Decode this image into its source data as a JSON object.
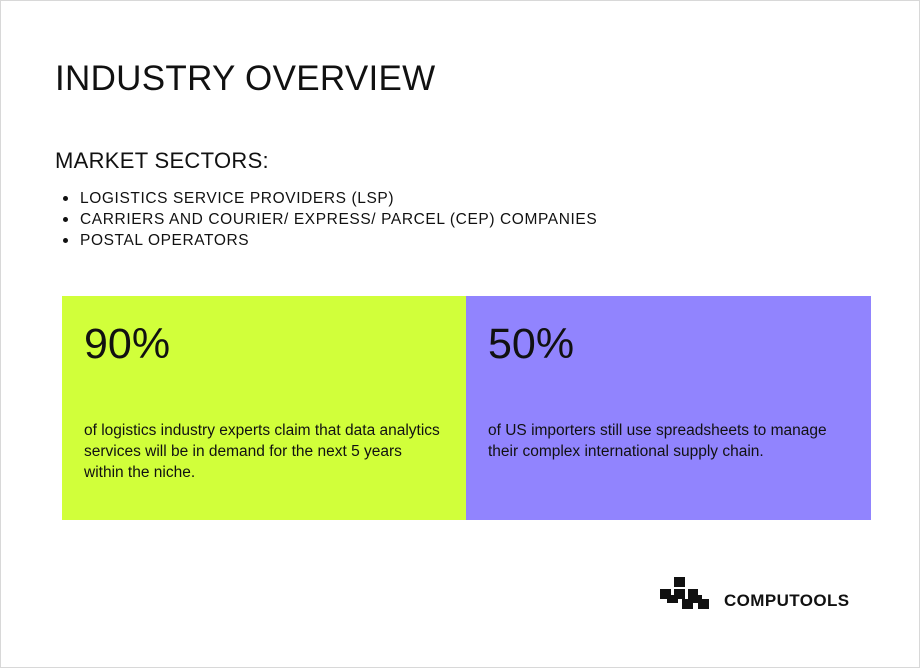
{
  "title": "INDUSTRY OVERVIEW",
  "sectors": {
    "heading": "MARKET SECTORS:",
    "items": [
      "LOGISTICS SERVICE PROVIDERS (LSP)",
      "CARRIERS AND COURIER/ EXPRESS/ PARCEL (CEP) COMPANIES",
      "POSTAL OPERATORS"
    ]
  },
  "stats": [
    {
      "value": "90%",
      "text": "of logistics industry experts claim that data analytics services will be in demand for the next 5 years within the niche.",
      "color": "#d1ff3a"
    },
    {
      "value": "50%",
      "text": "of US importers still use spreadsheets to manage their complex international supply chain.",
      "color": "#9184fe"
    }
  ],
  "logo": {
    "icon": "computools-logo-icon",
    "name": "COMPUTOOLS"
  }
}
